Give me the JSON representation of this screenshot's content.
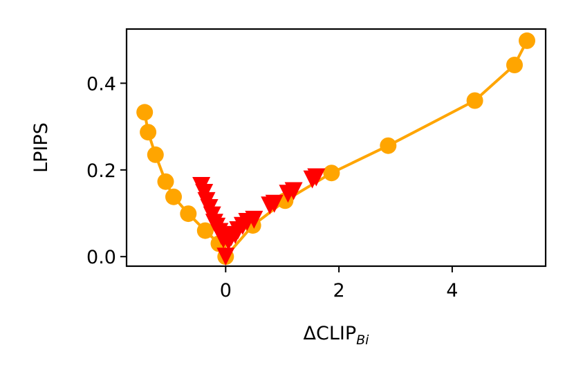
{
  "chart_data": {
    "type": "line",
    "xlabel": "ΔCLIP",
    "xlabel_subscript": "Bi",
    "ylabel": "LPIPS",
    "xlim": [
      -1.75,
      5.65
    ],
    "ylim": [
      -0.022,
      0.525
    ],
    "xticks": [
      0,
      2,
      4
    ],
    "yticks": [
      0.0,
      0.2,
      0.4
    ],
    "xtick_labels": [
      "0",
      "2",
      "4"
    ],
    "ytick_labels": [
      "0.0",
      "0.2",
      "0.4"
    ],
    "grid": false,
    "series": [
      {
        "marker": "circle",
        "line": true,
        "color": "#FFA500",
        "x": [
          -1.43,
          -1.37,
          -1.24,
          -1.06,
          -0.92,
          -0.66,
          -0.36,
          -0.12,
          0.0,
          0.48,
          1.05,
          1.87,
          2.87,
          4.4,
          5.1,
          5.32
        ],
        "y": [
          0.333,
          0.287,
          0.235,
          0.173,
          0.138,
          0.099,
          0.06,
          0.03,
          0.0,
          0.072,
          0.129,
          0.193,
          0.256,
          0.36,
          0.442,
          0.498
        ]
      },
      {
        "marker": "triangle-down",
        "line": false,
        "color": "#FF0000",
        "x": [
          -0.43,
          -0.38,
          -0.34,
          -0.29,
          -0.24,
          -0.2,
          -0.16,
          -0.11,
          -0.08,
          -0.04,
          0.0,
          0.05,
          0.1,
          0.17,
          0.22,
          0.3,
          0.38,
          0.5,
          0.78,
          0.86,
          1.1,
          1.2,
          1.53,
          1.6
        ],
        "y": [
          0.163,
          0.147,
          0.128,
          0.112,
          0.095,
          0.078,
          0.069,
          0.057,
          0.048,
          0.04,
          0.0,
          0.035,
          0.045,
          0.05,
          0.061,
          0.071,
          0.08,
          0.085,
          0.118,
          0.122,
          0.145,
          0.151,
          0.178,
          0.183
        ]
      }
    ]
  }
}
